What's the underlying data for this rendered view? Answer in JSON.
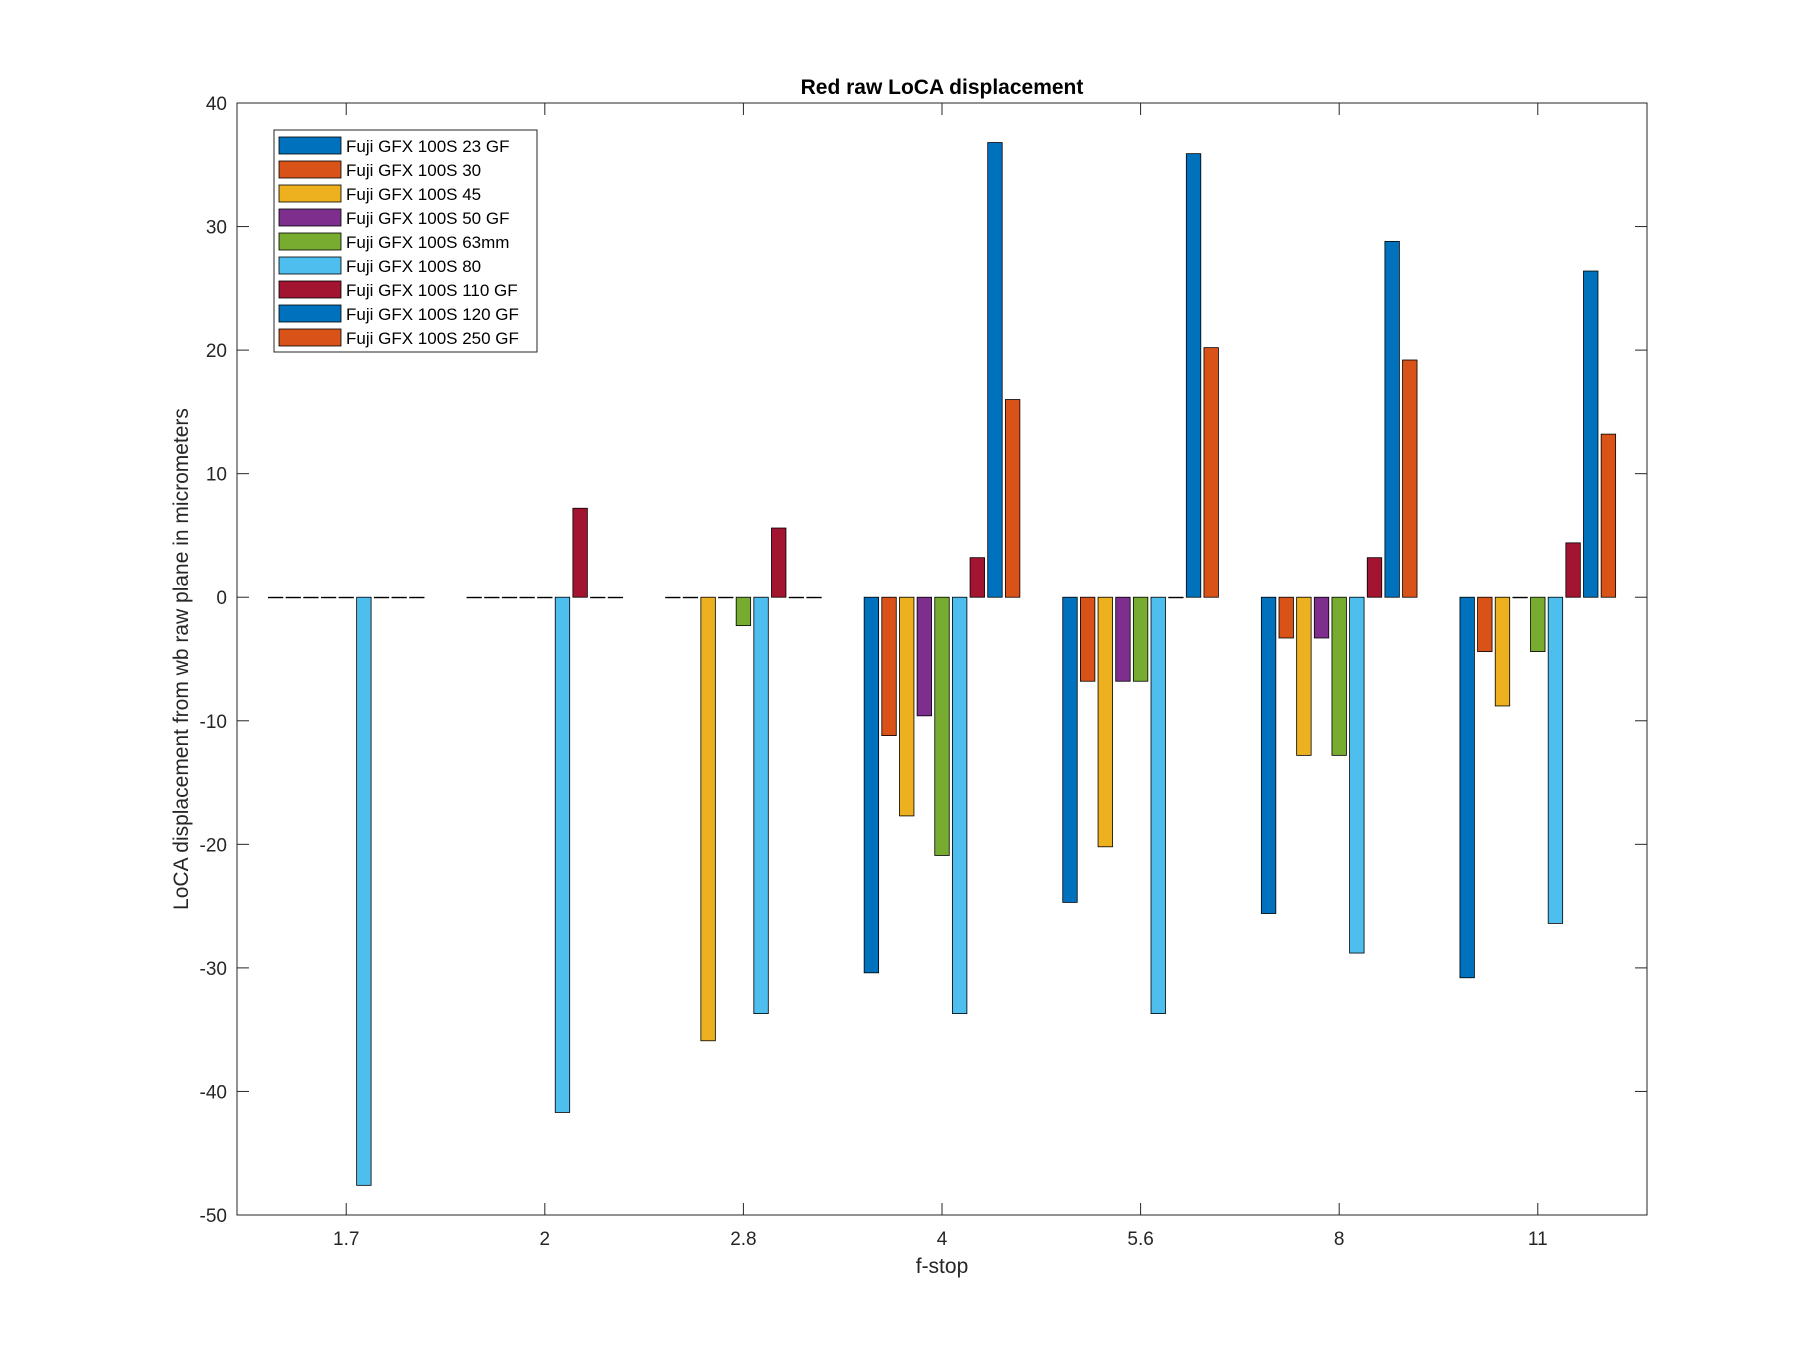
{
  "chart_data": {
    "type": "bar",
    "title": "Red raw  LoCA displacement",
    "xlabel": "f-stop",
    "ylabel": "LoCA displacement from wb raw plane in micrometers",
    "categories": [
      "1.7",
      "2",
      "2.8",
      "4",
      "5.6",
      "8",
      "11"
    ],
    "ylim": [
      -50,
      40
    ],
    "yticks": [
      -50,
      -40,
      -30,
      -20,
      -10,
      0,
      10,
      20,
      30,
      40
    ],
    "grid": false,
    "legend_position": "top-left",
    "series": [
      {
        "name": "Fuji GFX 100S 23  GF",
        "color": "#0072BD",
        "values": [
          0,
          0,
          0,
          -30.4,
          -24.7,
          -25.6,
          -30.8
        ]
      },
      {
        "name": "Fuji GFX 100S 30",
        "color": "#D95319",
        "values": [
          0,
          0,
          0,
          -11.2,
          -6.8,
          -3.3,
          -4.4
        ]
      },
      {
        "name": "Fuji GFX 100S 45",
        "color": "#EDB120",
        "values": [
          0,
          0,
          -35.9,
          -17.7,
          -20.2,
          -12.8,
          -8.8
        ]
      },
      {
        "name": "Fuji GFX 100S 50 GF",
        "color": "#7E2F8E",
        "values": [
          0,
          0,
          0,
          -9.6,
          -6.8,
          -3.3,
          0
        ]
      },
      {
        "name": "Fuji GFX 100S 63mm",
        "color": "#77AC30",
        "values": [
          0,
          0,
          -2.3,
          -20.9,
          -6.8,
          -12.8,
          -4.4
        ]
      },
      {
        "name": "Fuji GFX 100S 80",
        "color": "#4DBEEE",
        "values": [
          -47.6,
          -41.7,
          -33.7,
          -33.7,
          -33.7,
          -28.8,
          -26.4
        ]
      },
      {
        "name": "Fuji GFX 100S 110 GF",
        "color": "#A2142F",
        "values": [
          0,
          7.2,
          5.6,
          3.2,
          0,
          3.2,
          4.4
        ]
      },
      {
        "name": "Fuji GFX 100S 120 GF",
        "color": "#0072BD",
        "values": [
          0,
          0,
          0,
          36.8,
          35.9,
          28.8,
          26.4
        ]
      },
      {
        "name": "Fuji GFX 100S 250 GF",
        "color": "#D95319",
        "values": [
          0,
          0,
          0,
          16.0,
          20.2,
          19.2,
          13.2
        ]
      }
    ]
  }
}
